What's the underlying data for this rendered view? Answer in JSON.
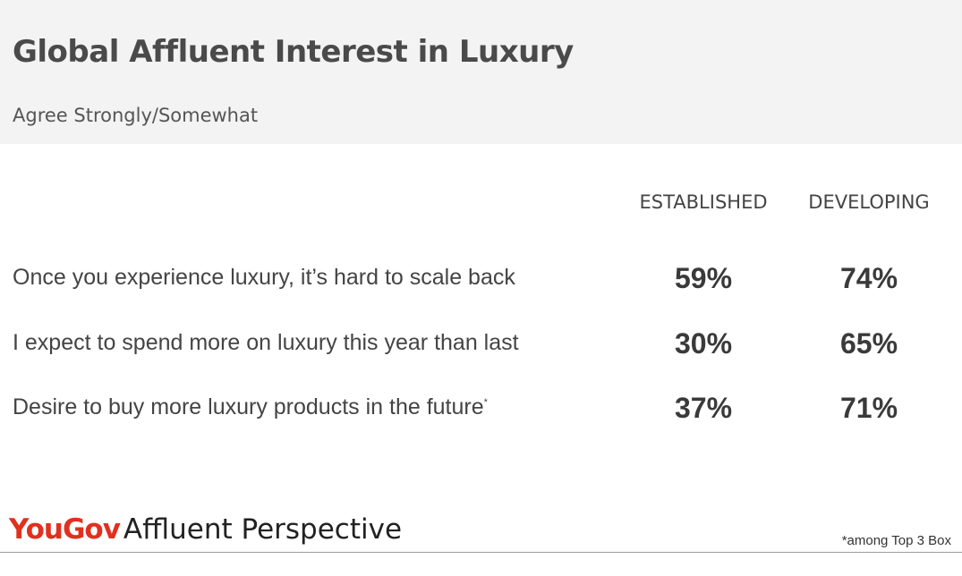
{
  "header": {
    "title": "Global Affluent Interest in Luxury",
    "subtitle": "Agree Strongly/Somewhat"
  },
  "chart_data": {
    "type": "table",
    "title": "Global Affluent Interest in Luxury",
    "subtitle": "Agree Strongly/Somewhat",
    "columns": [
      "ESTABLISHED",
      "DEVELOPING"
    ],
    "rows": [
      {
        "label": "Once you experience luxury, it’s hard to scale back",
        "marker": "",
        "values": [
          "59%",
          "74%"
        ]
      },
      {
        "label": "I expect to spend more on luxury this year than last",
        "marker": "",
        "values": [
          "30%",
          "65%"
        ]
      },
      {
        "label": "Desire to buy more luxury products in the future",
        "marker": "*",
        "values": [
          "37%",
          "71%"
        ]
      }
    ]
  },
  "footer": {
    "brand_you": "You",
    "brand_gov": "Gov",
    "brand_rest": "Affluent Perspective",
    "footnote": "*among Top 3 Box"
  }
}
